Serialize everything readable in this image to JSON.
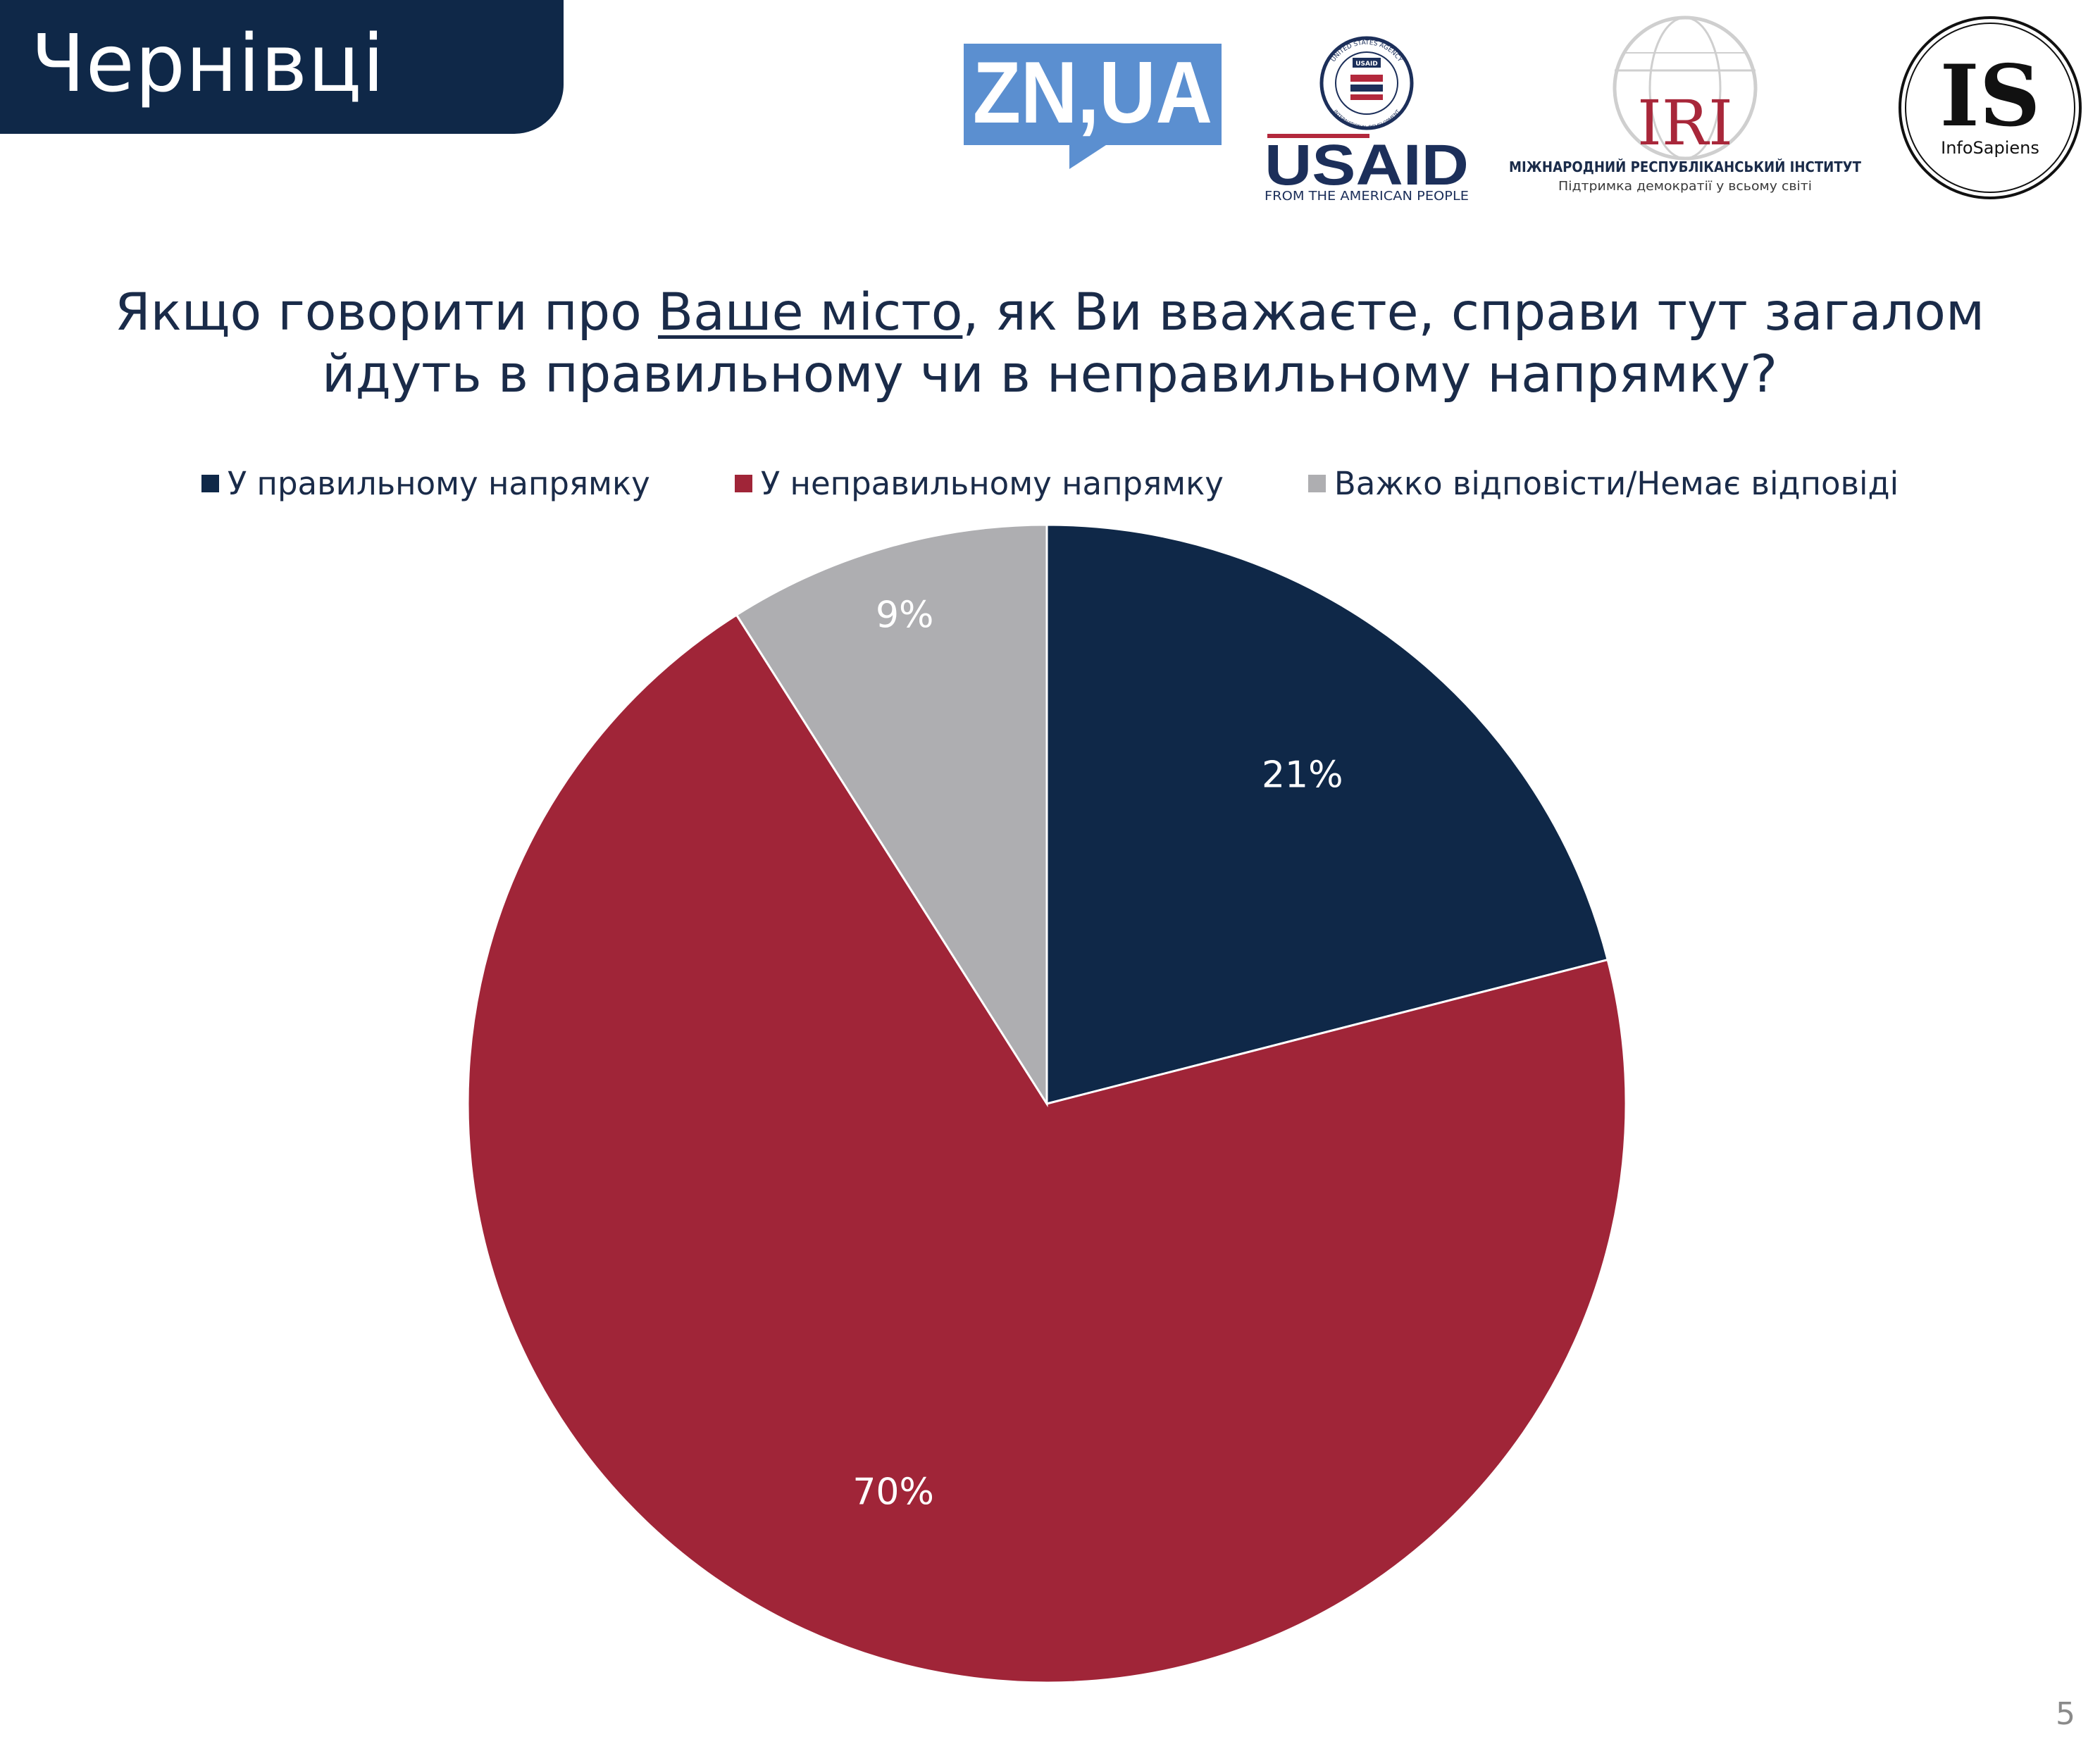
{
  "header": {
    "city": "Чернівці"
  },
  "logos": {
    "zn": {
      "text": "ZN,UA",
      "icon": "zn-ua-logo"
    },
    "usaid": {
      "text": "USAID",
      "tagline": "FROM THE AMERICAN PEOPLE",
      "seal_top": "UNITED STATES AGENCY",
      "seal_bottom": "INTERNATIONAL DEVELOPMENT",
      "seal_center": "USAID",
      "icon": "usaid-logo"
    },
    "iri": {
      "text": "IRI",
      "name": "МІЖНАРОДНИЙ РЕСПУБЛІКАНСЬКИЙ ІНСТИТУТ",
      "tagline": "Підтримка демократії у всьому світі",
      "icon": "iri-globe-logo"
    },
    "infosapiens": {
      "text": "IS",
      "name": "InfoSapiens",
      "icon": "infosapiens-logo"
    }
  },
  "question": {
    "part1": "Якщо говорити про ",
    "underlined": "Ваше місто",
    "part2": ", як Ви вважаєте, справи тут загалом",
    "line2": "йдуть в правильному чи в неправильному напрямку?"
  },
  "colors": {
    "right": "#0f2848",
    "wrong": "#a02538",
    "hard": "#aeaeb1",
    "banner": "#0f2848",
    "zn_blue": "#5b8fd0",
    "usaid_navy": "#1c2f5a",
    "usaid_red": "#b3283c",
    "iri_red": "#a8273a"
  },
  "chart_data": {
    "type": "pie",
    "title": "",
    "categories": [
      "У правильному напрямку",
      "У неправильному напрямку",
      "Важко відповісти/Немає відповіді"
    ],
    "values": [
      21,
      70,
      9
    ],
    "labels": [
      "21%",
      "70%",
      "9%"
    ],
    "start": "12 o'clock",
    "direction": "clockwise",
    "legend_position": "top"
  },
  "page": {
    "number": "5"
  }
}
